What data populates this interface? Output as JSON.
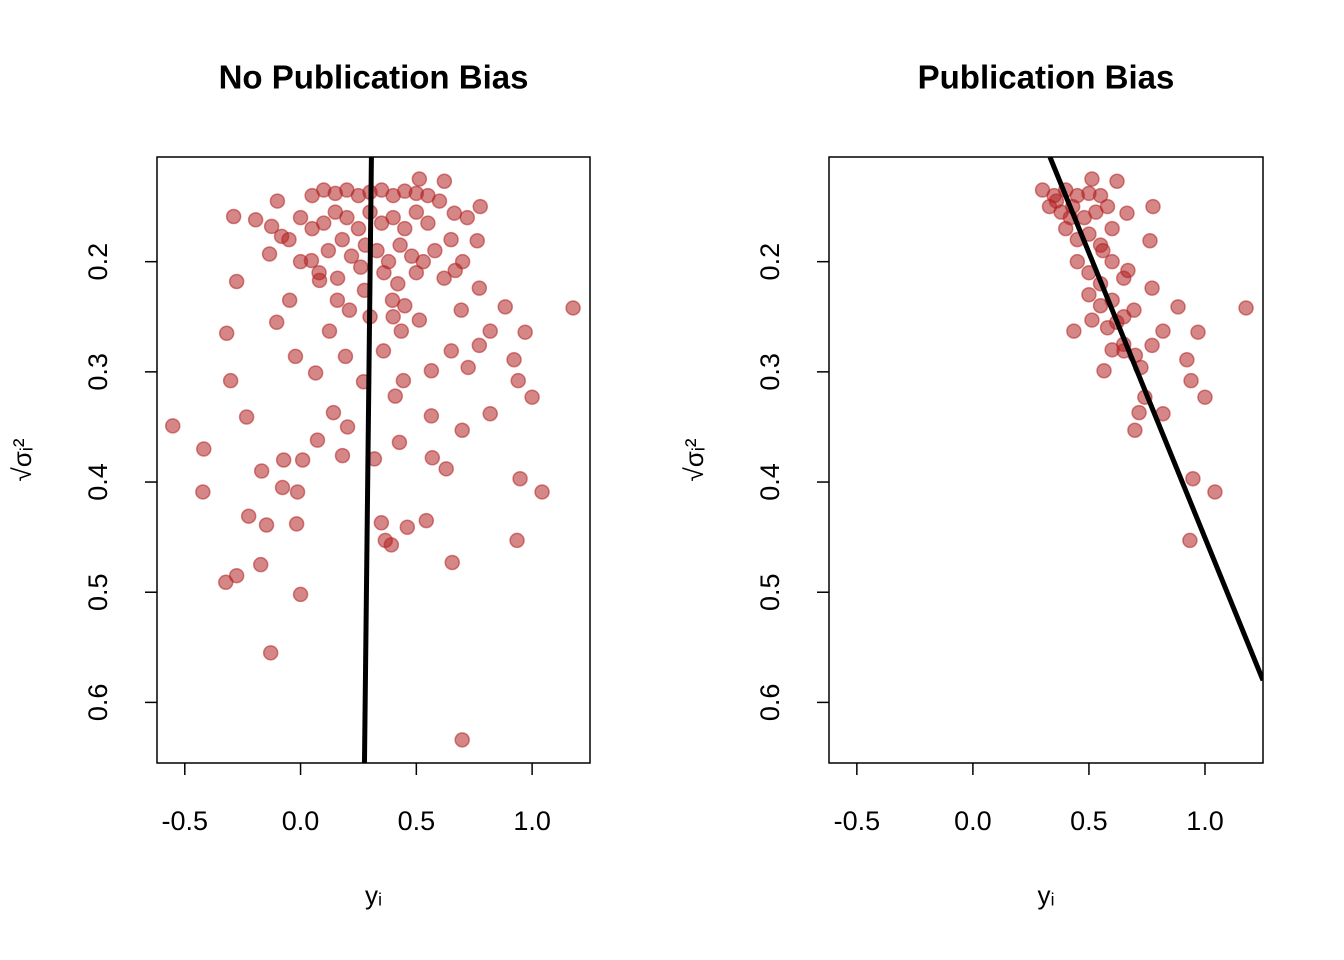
{
  "chart_data": [
    {
      "type": "scatter",
      "title": "No Publication Bias",
      "xlabel": "yᵢ",
      "ylabel": "√σᵢ²",
      "color": "#b22222",
      "opacity": 0.55,
      "xlim": [
        -0.62,
        1.25
      ],
      "ylim": [
        0.655,
        0.105
      ],
      "xticks": [
        -0.5,
        {
          "value": 0,
          "label": "0.0"
        },
        0.5,
        {
          "value": 1,
          "label": "1.0"
        }
      ],
      "yticks": [
        0.2,
        0.3,
        0.4,
        0.5,
        0.6
      ],
      "x": [
        -0.552,
        -0.418,
        -0.422,
        -0.323,
        -0.276,
        -0.129,
        0.0,
        0.698,
        1.177,
        1.043,
        0.948,
        0.935,
        1.0,
        0.97,
        0.884,
        0.655,
        0.543,
        0.392,
        0.366,
        0.349,
        0.461,
        -0.172,
        -0.233,
        -0.276,
        -0.289,
        -0.319,
        -0.302,
        -0.168,
        -0.224,
        -0.147,
        -0.017,
        -0.013,
        -0.078,
        0.009,
        -0.073,
        0.181,
        0.073,
        0.142,
        0.203,
        0.319,
        0.427,
        0.569,
        0.629,
        0.565,
        0.698,
        0.819,
        0.94,
        0.922,
        0.772,
        0.819,
        0.724,
        0.651,
        0.694,
        0.772,
        0.668,
        0.763,
        0.776,
        0.664,
        0.621,
        0.513,
        -0.047,
        -0.103,
        -0.022,
        0.065,
        0.125,
        0.194,
        0.272,
        0.358,
        0.435,
        0.513,
        0.565,
        0.409,
        0.444,
        0.159,
        0.211,
        0.047,
        0.082,
        0.276,
        0.397,
        -0.125,
        -0.194,
        -0.082,
        -0.134,
        0.05,
        0.1,
        0.15,
        0.2,
        0.25,
        0.3,
        0.35,
        0.4,
        0.45,
        0.5,
        0.55,
        0.6,
        0.0,
        0.05,
        0.1,
        0.15,
        0.2,
        0.25,
        0.3,
        0.35,
        0.4,
        0.45,
        0.5,
        0.55,
        0.12,
        0.18,
        0.22,
        0.28,
        0.33,
        0.38,
        0.43,
        0.48,
        0.53,
        0.58,
        0.0,
        0.08,
        0.16,
        0.26,
        0.36,
        0.42,
        0.5,
        0.62,
        0.7,
        0.65,
        -0.05,
        -0.1,
        0.72,
        0.3,
        0.4,
        0.45
      ],
      "y": [
        0.349,
        0.37,
        0.409,
        0.491,
        0.485,
        0.555,
        0.502,
        0.634,
        0.242,
        0.409,
        0.397,
        0.453,
        0.323,
        0.264,
        0.241,
        0.473,
        0.435,
        0.457,
        0.453,
        0.437,
        0.441,
        0.475,
        0.341,
        0.218,
        0.159,
        0.265,
        0.308,
        0.39,
        0.431,
        0.439,
        0.438,
        0.409,
        0.405,
        0.38,
        0.38,
        0.376,
        0.362,
        0.337,
        0.35,
        0.379,
        0.364,
        0.378,
        0.388,
        0.34,
        0.353,
        0.338,
        0.308,
        0.289,
        0.276,
        0.263,
        0.296,
        0.281,
        0.244,
        0.224,
        0.208,
        0.181,
        0.15,
        0.156,
        0.127,
        0.125,
        0.235,
        0.255,
        0.286,
        0.301,
        0.263,
        0.286,
        0.309,
        0.281,
        0.263,
        0.253,
        0.299,
        0.322,
        0.308,
        0.235,
        0.244,
        0.199,
        0.217,
        0.226,
        0.235,
        0.168,
        0.162,
        0.177,
        0.193,
        0.14,
        0.135,
        0.138,
        0.135,
        0.14,
        0.137,
        0.135,
        0.14,
        0.136,
        0.138,
        0.14,
        0.145,
        0.16,
        0.17,
        0.165,
        0.155,
        0.16,
        0.17,
        0.155,
        0.165,
        0.16,
        0.17,
        0.155,
        0.165,
        0.19,
        0.18,
        0.195,
        0.185,
        0.19,
        0.2,
        0.185,
        0.195,
        0.2,
        0.19,
        0.2,
        0.21,
        0.215,
        0.205,
        0.21,
        0.22,
        0.21,
        0.215,
        0.2,
        0.18,
        0.18,
        0.145,
        0.16,
        0.25,
        0.25,
        0.24
      ],
      "line": {
        "x": [
          0.306,
          0.276
        ],
        "y": [
          0.105,
          0.655
        ],
        "color": "#000000"
      }
    },
    {
      "type": "scatter",
      "title": "Publication Bias",
      "xlabel": "yᵢ",
      "ylabel": "√σᵢ²",
      "color": "#b22222",
      "opacity": 0.55,
      "xlim": [
        -0.62,
        1.25
      ],
      "ylim": [
        0.655,
        0.105
      ],
      "xticks": [
        -0.5,
        {
          "value": 0,
          "label": "0.0"
        },
        0.5,
        {
          "value": 1,
          "label": "1.0"
        }
      ],
      "yticks": [
        0.2,
        0.3,
        0.4,
        0.5,
        0.6
      ],
      "x": [
        1.177,
        1.043,
        0.948,
        0.935,
        1.0,
        0.97,
        0.884,
        0.94,
        0.922,
        0.819,
        0.772,
        0.819,
        0.724,
        0.698,
        0.651,
        0.694,
        0.772,
        0.668,
        0.763,
        0.776,
        0.664,
        0.621,
        0.513,
        0.565,
        0.513,
        0.435,
        0.741,
        0.716,
        0.3,
        0.35,
        0.4,
        0.45,
        0.5,
        0.55,
        0.33,
        0.38,
        0.43,
        0.48,
        0.53,
        0.58,
        0.4,
        0.45,
        0.5,
        0.55,
        0.6,
        0.45,
        0.5,
        0.55,
        0.6,
        0.65,
        0.5,
        0.55,
        0.6,
        0.58,
        0.62,
        0.6,
        0.65,
        0.7,
        0.56,
        0.42,
        0.36,
        0.65
      ],
      "y": [
        0.242,
        0.409,
        0.397,
        0.453,
        0.323,
        0.264,
        0.241,
        0.308,
        0.289,
        0.338,
        0.276,
        0.263,
        0.296,
        0.353,
        0.281,
        0.244,
        0.224,
        0.208,
        0.181,
        0.15,
        0.156,
        0.127,
        0.125,
        0.299,
        0.253,
        0.263,
        0.323,
        0.337,
        0.135,
        0.14,
        0.135,
        0.14,
        0.138,
        0.14,
        0.15,
        0.155,
        0.15,
        0.16,
        0.155,
        0.15,
        0.17,
        0.18,
        0.175,
        0.185,
        0.17,
        0.2,
        0.21,
        0.22,
        0.2,
        0.215,
        0.23,
        0.24,
        0.235,
        0.26,
        0.255,
        0.28,
        0.275,
        0.285,
        0.19,
        0.16,
        0.145,
        0.25
      ],
      "line": {
        "x": [
          0.332,
          1.25
        ],
        "y": [
          0.105,
          0.58
        ],
        "color": "#000000"
      }
    }
  ]
}
